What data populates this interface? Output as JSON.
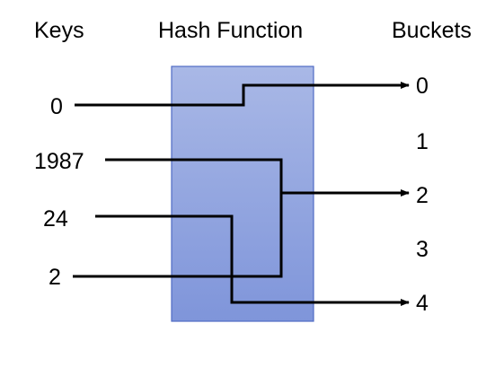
{
  "headers": {
    "keys": "Keys",
    "hash_function": "Hash Function",
    "buckets": "Buckets"
  },
  "keys": [
    "0",
    "1987",
    "24",
    "2"
  ],
  "buckets": [
    "0",
    "1",
    "2",
    "3",
    "4"
  ],
  "mappings": [
    {
      "key": "0",
      "bucket": "0"
    },
    {
      "key": "1987",
      "bucket": "2"
    },
    {
      "key": "2",
      "bucket": "2"
    },
    {
      "key": "24",
      "bucket": "4"
    }
  ],
  "colors": {
    "hash_box_fill": "#8FA3DF",
    "hash_box_stroke": "#4F6BC4",
    "line": "#000000"
  }
}
